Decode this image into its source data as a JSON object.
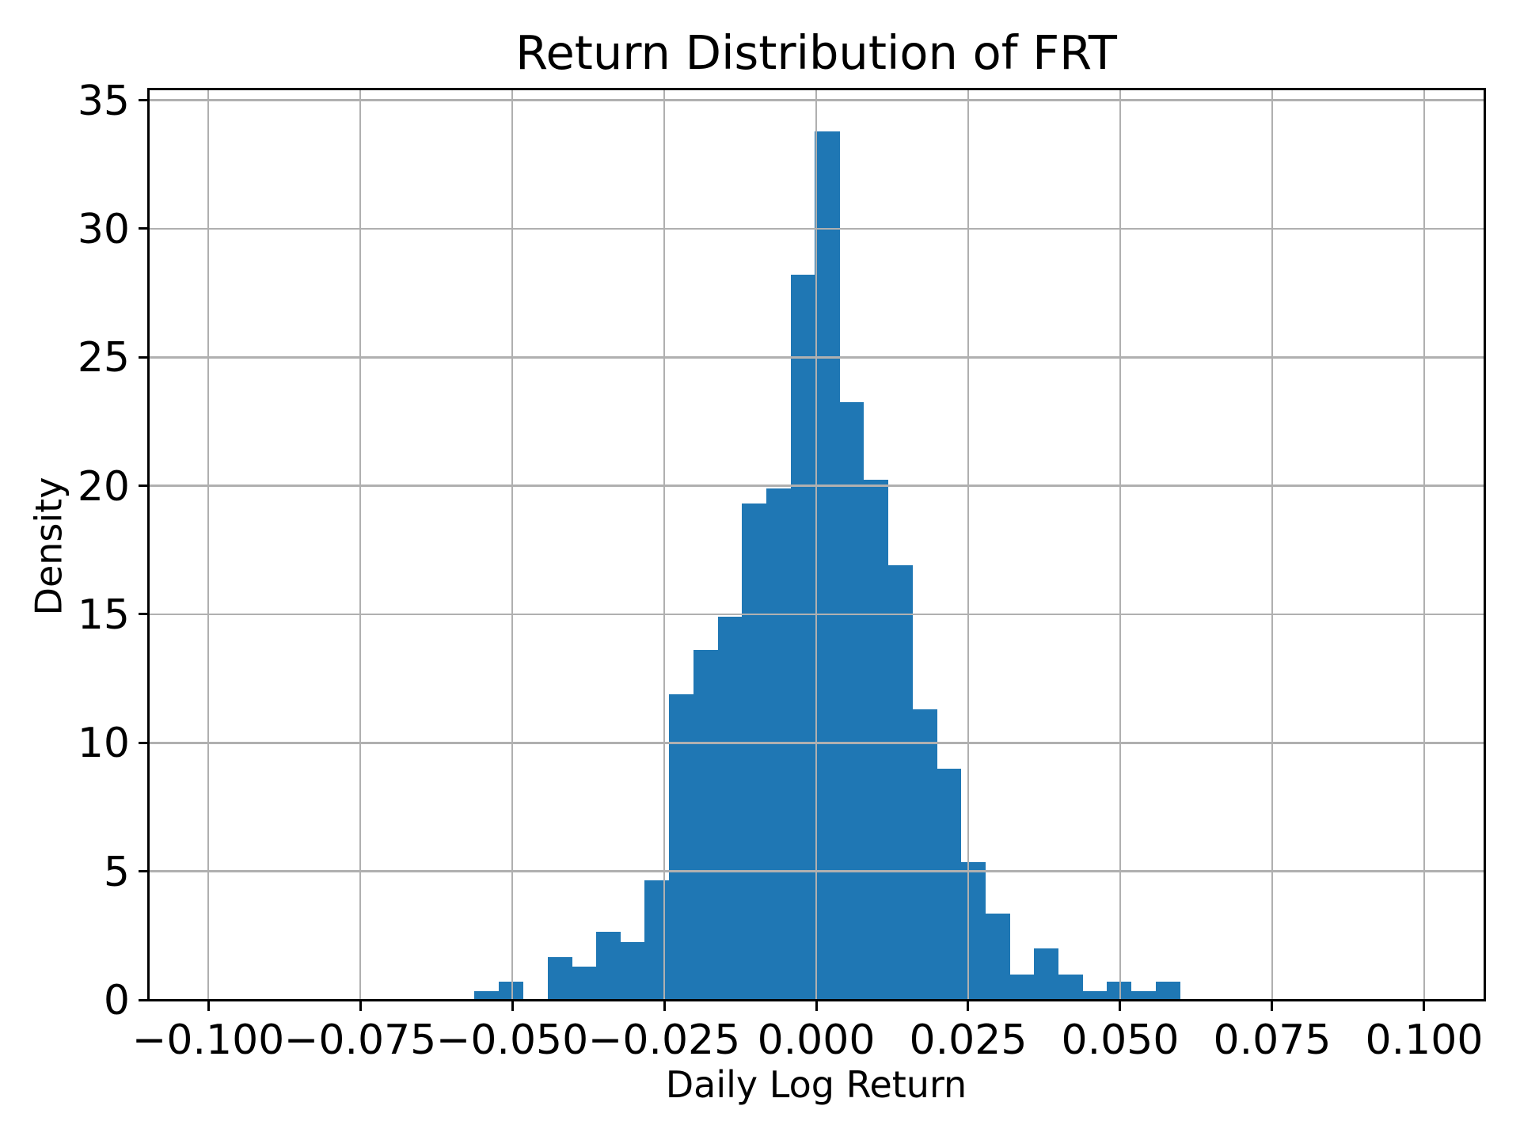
{
  "chart_data": {
    "type": "histogram",
    "title": "Return Distribution of FRT",
    "xlabel": "Daily Log Return",
    "ylabel": "Density",
    "xlim": [
      -0.1099,
      0.1099
    ],
    "ylim": [
      0,
      35.45
    ],
    "grid": true,
    "grid_on_top_of_bars": true,
    "legend": "none",
    "bar_color": "#1f77b4",
    "grid_color": "#b0b0b0",
    "axis_color": "#000000",
    "background_color": "#ffffff",
    "bin_width": 0.004,
    "bin_edges": [
      -0.0562,
      -0.0522,
      -0.0482,
      -0.0442,
      -0.0402,
      -0.0362,
      -0.0322,
      -0.0282,
      -0.0242,
      -0.0202,
      -0.0162,
      -0.0122,
      -0.0082,
      -0.0042,
      -0.0002,
      0.0038,
      0.0078,
      0.0118,
      0.0158,
      0.0198,
      0.0238,
      0.0278,
      0.0318,
      0.0358,
      0.0398,
      0.0438,
      0.0478,
      0.0518,
      0.0558,
      0.0598
    ],
    "densities": [
      0.35,
      0.7,
      0,
      1.65,
      1.3,
      2.65,
      2.25,
      4.65,
      11.9,
      13.6,
      14.9,
      19.3,
      19.9,
      28.2,
      33.8,
      23.25,
      20.25,
      16.9,
      11.3,
      9.0,
      5.35,
      3.35,
      1.0,
      2.0,
      1.0,
      0.35,
      0.7,
      0.35,
      0.7
    ]
  },
  "x_axis": {
    "label": "Daily Log Return",
    "tick_values": [
      -0.1,
      -0.075,
      -0.05,
      -0.025,
      0.0,
      0.025,
      0.05,
      0.075,
      0.1
    ],
    "tick_labels": [
      "−0.100",
      "−0.075",
      "−0.050",
      "−0.025",
      "0.000",
      "0.025",
      "0.050",
      "0.075",
      "0.100"
    ]
  },
  "y_axis": {
    "label": "Density",
    "tick_values": [
      0,
      5,
      10,
      15,
      20,
      25,
      30,
      35
    ],
    "tick_labels": [
      "0",
      "5",
      "10",
      "15",
      "20",
      "25",
      "30",
      "35"
    ]
  }
}
